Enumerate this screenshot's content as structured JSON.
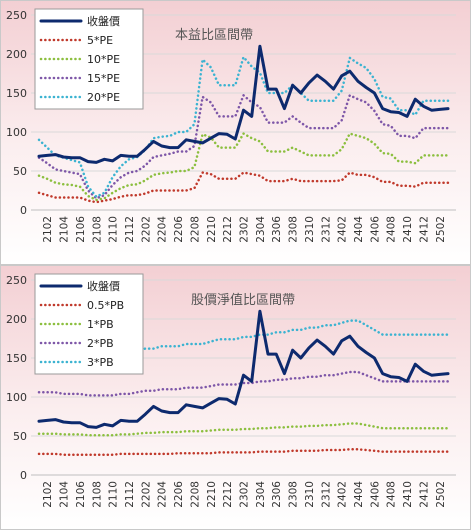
{
  "chart_data": [
    {
      "type": "line",
      "title": "本益比區間帶",
      "xlabel": "",
      "ylabel": "",
      "ylim": [
        0,
        250
      ],
      "yticks": [
        0,
        50,
        100,
        150,
        200,
        250
      ],
      "grid": true,
      "legend": "top-left",
      "categories": [
        "2101",
        "2102",
        "2103",
        "2104",
        "2105",
        "2106",
        "2107",
        "2108",
        "2109",
        "2110",
        "2111",
        "2112",
        "2201",
        "2202",
        "2203",
        "2204",
        "2205",
        "2206",
        "2207",
        "2208",
        "2209",
        "2210",
        "2211",
        "2212",
        "2301",
        "2302",
        "2303",
        "2304",
        "2305",
        "2306",
        "2307",
        "2308",
        "2309",
        "2310",
        "2311",
        "2312",
        "2401",
        "2402",
        "2403",
        "2404",
        "2405",
        "2406",
        "2407",
        "2408",
        "2409",
        "2410",
        "2411",
        "2412",
        "2501",
        "2502",
        "2503"
      ],
      "tick_labels": [
        "2102",
        "2104",
        "2106",
        "2108",
        "2110",
        "2112",
        "2202",
        "2204",
        "2206",
        "2208",
        "2210",
        "2212",
        "2302",
        "2304",
        "2306",
        "2308",
        "2310",
        "2312",
        "2402",
        "2404",
        "2406",
        "2408",
        "2410",
        "2412",
        "2502"
      ],
      "series": [
        {
          "name": "收盤價",
          "color": "#0d2a6e",
          "dash": "solid",
          "width": 3,
          "values": [
            69,
            70,
            71,
            68,
            67,
            67,
            62,
            61,
            65,
            63,
            70,
            69,
            69,
            78,
            88,
            82,
            80,
            80,
            90,
            88,
            86,
            92,
            98,
            97,
            91,
            128,
            120,
            210,
            155,
            155,
            130,
            160,
            150,
            163,
            173,
            165,
            155,
            172,
            178,
            165,
            157,
            150,
            130,
            126,
            125,
            120,
            142,
            133,
            128,
            129,
            130
          ]
        },
        {
          "name": "5*PE",
          "color": "#c0392b",
          "dash": "dot",
          "width": 2.5,
          "values": [
            22,
            19,
            16,
            16,
            16,
            16,
            12,
            10,
            12,
            14,
            17,
            19,
            19,
            21,
            25,
            25,
            25,
            25,
            25,
            28,
            48,
            46,
            40,
            40,
            40,
            48,
            46,
            44,
            37,
            37,
            37,
            40,
            37,
            37,
            37,
            37,
            37,
            38,
            48,
            45,
            45,
            42,
            36,
            36,
            31,
            31,
            30,
            35,
            35,
            35,
            35
          ]
        },
        {
          "name": "10*PE",
          "color": "#8cbf3f",
          "dash": "dot",
          "width": 2.5,
          "values": [
            44,
            40,
            35,
            33,
            32,
            30,
            18,
            13,
            15,
            22,
            28,
            32,
            33,
            38,
            45,
            47,
            48,
            50,
            50,
            55,
            97,
            93,
            80,
            80,
            80,
            98,
            92,
            88,
            75,
            75,
            75,
            80,
            75,
            70,
            70,
            70,
            70,
            78,
            98,
            95,
            92,
            85,
            73,
            72,
            62,
            62,
            60,
            70,
            70,
            70,
            70
          ]
        },
        {
          "name": "15*PE",
          "color": "#7e57a8",
          "dash": "dot",
          "width": 2.5,
          "values": [
            67,
            60,
            52,
            50,
            48,
            46,
            25,
            15,
            19,
            32,
            42,
            48,
            50,
            57,
            68,
            70,
            72,
            75,
            75,
            82,
            145,
            138,
            120,
            120,
            120,
            147,
            138,
            132,
            112,
            112,
            112,
            120,
            112,
            105,
            105,
            105,
            105,
            115,
            147,
            142,
            138,
            127,
            110,
            108,
            95,
            95,
            92,
            105,
            105,
            105,
            105
          ]
        },
        {
          "name": "20*PE",
          "color": "#3bb3d1",
          "dash": "dot",
          "width": 2.5,
          "values": [
            90,
            80,
            70,
            67,
            64,
            61,
            30,
            17,
            22,
            42,
            56,
            65,
            68,
            77,
            92,
            94,
            95,
            100,
            100,
            110,
            193,
            183,
            160,
            160,
            160,
            196,
            184,
            176,
            150,
            150,
            150,
            160,
            150,
            140,
            140,
            140,
            140,
            153,
            195,
            188,
            182,
            168,
            145,
            143,
            128,
            128,
            122,
            140,
            140,
            140,
            140
          ]
        }
      ]
    },
    {
      "type": "line",
      "title": "股價淨值比區間帶",
      "xlabel": "",
      "ylabel": "",
      "ylim": [
        0,
        250
      ],
      "yticks": [
        0,
        50,
        100,
        150,
        200,
        250
      ],
      "grid": true,
      "legend": "top-left",
      "categories": [
        "2101",
        "2102",
        "2103",
        "2104",
        "2105",
        "2106",
        "2107",
        "2108",
        "2109",
        "2110",
        "2111",
        "2112",
        "2201",
        "2202",
        "2203",
        "2204",
        "2205",
        "2206",
        "2207",
        "2208",
        "2209",
        "2210",
        "2211",
        "2212",
        "2301",
        "2302",
        "2303",
        "2304",
        "2305",
        "2306",
        "2307",
        "2308",
        "2309",
        "2310",
        "2311",
        "2312",
        "2401",
        "2402",
        "2403",
        "2404",
        "2405",
        "2406",
        "2407",
        "2408",
        "2409",
        "2410",
        "2411",
        "2412",
        "2501",
        "2502",
        "2503"
      ],
      "tick_labels": [
        "2102",
        "2104",
        "2106",
        "2108",
        "2110",
        "2112",
        "2202",
        "2204",
        "2206",
        "2208",
        "2210",
        "2212",
        "2302",
        "2304",
        "2306",
        "2308",
        "2310",
        "2312",
        "2402",
        "2404",
        "2406",
        "2408",
        "2410",
        "2412",
        "2502"
      ],
      "series": [
        {
          "name": "收盤價",
          "color": "#0d2a6e",
          "dash": "solid",
          "width": 3,
          "values": [
            69,
            70,
            71,
            68,
            67,
            67,
            62,
            61,
            65,
            63,
            70,
            69,
            69,
            78,
            88,
            82,
            80,
            80,
            90,
            88,
            86,
            92,
            98,
            97,
            91,
            128,
            120,
            210,
            155,
            155,
            130,
            160,
            150,
            163,
            173,
            165,
            155,
            172,
            178,
            165,
            157,
            150,
            130,
            126,
            125,
            120,
            142,
            133,
            128,
            129,
            130
          ]
        },
        {
          "name": "0.5*PB",
          "color": "#c0392b",
          "dash": "dot",
          "width": 2.5,
          "values": [
            27,
            27,
            27,
            26,
            26,
            26,
            26,
            26,
            26,
            26,
            27,
            27,
            27,
            27,
            27,
            27,
            27,
            28,
            28,
            28,
            28,
            28,
            29,
            29,
            29,
            29,
            29,
            30,
            30,
            30,
            30,
            31,
            31,
            31,
            31,
            32,
            32,
            32,
            33,
            33,
            32,
            31,
            30,
            30,
            30,
            30,
            30,
            30,
            30,
            30,
            30
          ]
        },
        {
          "name": "1*PB",
          "color": "#8cbf3f",
          "dash": "dot",
          "width": 2.5,
          "values": [
            53,
            53,
            53,
            52,
            52,
            52,
            51,
            51,
            51,
            51,
            52,
            52,
            53,
            54,
            54,
            55,
            55,
            55,
            56,
            56,
            56,
            57,
            58,
            58,
            58,
            59,
            59,
            60,
            60,
            61,
            61,
            62,
            62,
            63,
            63,
            64,
            64,
            65,
            66,
            66,
            64,
            62,
            60,
            60,
            60,
            60,
            60,
            60,
            60,
            60,
            60
          ]
        },
        {
          "name": "2*PB",
          "color": "#7e57a8",
          "dash": "dot",
          "width": 2.5,
          "values": [
            106,
            106,
            106,
            104,
            104,
            104,
            102,
            102,
            102,
            102,
            104,
            104,
            106,
            108,
            108,
            110,
            110,
            110,
            112,
            112,
            112,
            114,
            116,
            116,
            116,
            118,
            118,
            120,
            120,
            122,
            122,
            124,
            124,
            126,
            126,
            128,
            128,
            130,
            132,
            132,
            128,
            124,
            120,
            120,
            120,
            120,
            120,
            120,
            120,
            120,
            120
          ]
        },
        {
          "name": "3*PB",
          "color": "#3bb3d1",
          "dash": "dot",
          "width": 2.5,
          "values": [
            159,
            159,
            159,
            156,
            156,
            156,
            153,
            153,
            153,
            153,
            156,
            156,
            159,
            162,
            162,
            165,
            165,
            165,
            168,
            168,
            168,
            171,
            174,
            174,
            174,
            177,
            177,
            180,
            180,
            183,
            183,
            186,
            186,
            189,
            189,
            192,
            192,
            195,
            198,
            198,
            192,
            186,
            180,
            180,
            180,
            180,
            180,
            180,
            180,
            180,
            180
          ]
        }
      ]
    }
  ]
}
